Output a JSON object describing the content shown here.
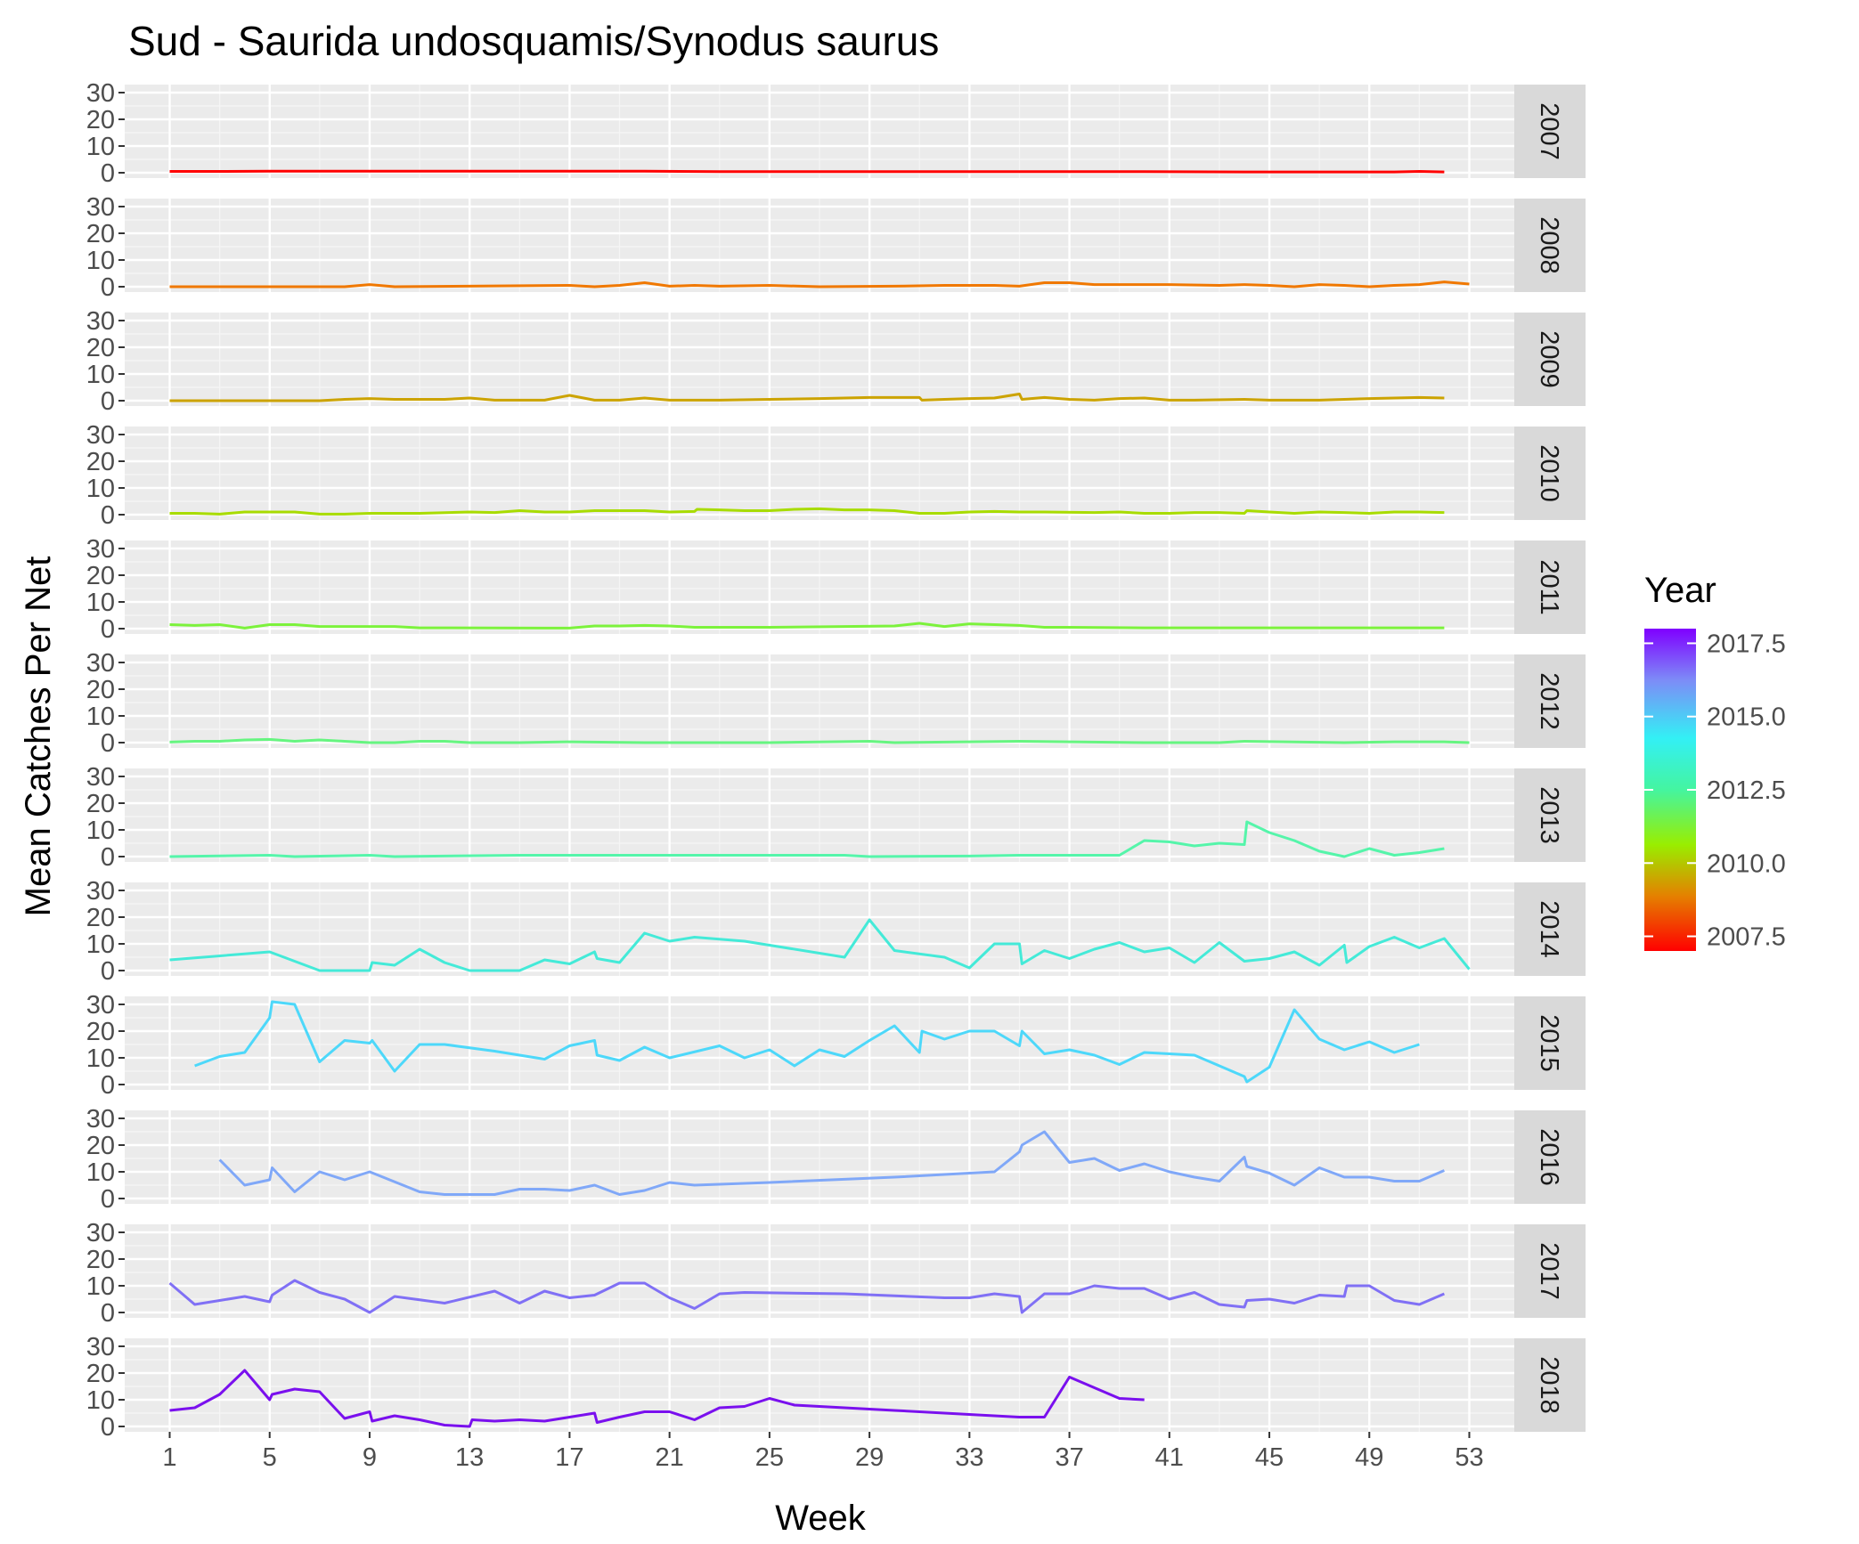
{
  "chart_data": {
    "type": "line",
    "title": "Sud - Saurida undosquamis/Synodus saurus",
    "xlabel": "Week",
    "ylabel": "Mean Catches Per Net",
    "xlim": [
      -0.8,
      54.8
    ],
    "ylim": [
      -2,
      33
    ],
    "xticks": [
      "1",
      "5",
      "9",
      "13",
      "17",
      "21",
      "25",
      "29",
      "33",
      "37",
      "41",
      "45",
      "49",
      "53"
    ],
    "yticks": [
      "0",
      "10",
      "20",
      "30"
    ],
    "facet_by": "Year",
    "facet_labels": [
      "2007",
      "2008",
      "2009",
      "2010",
      "2011",
      "2012",
      "2013",
      "2014",
      "2015",
      "2016",
      "2017",
      "2018"
    ],
    "legend": {
      "title": "Year",
      "position": "right",
      "type": "colorbar",
      "labels": [
        "2017.5",
        "2015.0",
        "2012.5",
        "2010.0",
        "2007.5"
      ]
    },
    "series": [
      {
        "facet": "2007",
        "color": "#FF0000",
        "x": [
          1,
          3,
          5,
          10,
          15,
          20,
          23,
          30,
          40,
          44,
          47,
          50,
          51,
          52
        ],
        "y": [
          0.5,
          0.5,
          0.6,
          0.6,
          0.6,
          0.6,
          0.4,
          0.4,
          0.4,
          0.3,
          0.3,
          0.3,
          0.5,
          0.3
        ]
      },
      {
        "facet": "2008",
        "color": "#F07800",
        "x": [
          1,
          8,
          9,
          10,
          17,
          18,
          19,
          20,
          21,
          22,
          23,
          25,
          27,
          30,
          32,
          34,
          35,
          36,
          37,
          38,
          41,
          43,
          44,
          45,
          46,
          47,
          48,
          49,
          50,
          51,
          52,
          53
        ],
        "y": [
          0,
          0,
          0.8,
          0,
          0.5,
          0,
          0.5,
          1.5,
          0.2,
          0.5,
          0.2,
          0.5,
          0,
          0.2,
          0.5,
          0.5,
          0.2,
          1.5,
          1.5,
          0.8,
          0.8,
          0.5,
          0.8,
          0.5,
          0,
          0.8,
          0.5,
          0,
          0.5,
          0.8,
          1.8,
          1.0
        ]
      },
      {
        "facet": "2009",
        "color": "#CCA300",
        "x": [
          1,
          7,
          8,
          9,
          10,
          11,
          12,
          13,
          14,
          16,
          17,
          18,
          19,
          20,
          21,
          22,
          23,
          25,
          27,
          28,
          29,
          31,
          31.1,
          32,
          33,
          34,
          35,
          35.1,
          36,
          37,
          38,
          39,
          40,
          41,
          42,
          44,
          45,
          47,
          48,
          49,
          50,
          51,
          52
        ],
        "y": [
          0,
          0,
          0.5,
          0.8,
          0.5,
          0.5,
          0.5,
          1.0,
          0.2,
          0.2,
          2.0,
          0.2,
          0.2,
          1.0,
          0.2,
          0.2,
          0.2,
          0.5,
          0.8,
          1.0,
          1.2,
          1.2,
          0.2,
          0.5,
          0.8,
          1.0,
          2.5,
          0.5,
          1.2,
          0.5,
          0.2,
          0.8,
          1.0,
          0.2,
          0.2,
          0.5,
          0.2,
          0.2,
          0.5,
          0.8,
          1.0,
          1.2,
          1.0
        ]
      },
      {
        "facet": "2010",
        "color": "#A8DC00",
        "x": [
          1,
          2,
          3,
          4,
          6,
          7,
          8,
          9,
          10,
          11,
          13,
          14,
          15,
          16,
          17,
          18,
          19,
          20,
          21,
          22,
          22.1,
          23,
          24,
          25,
          26,
          27,
          28,
          29,
          30,
          31,
          32,
          33,
          34,
          35,
          36,
          38,
          39,
          40,
          41,
          42,
          43,
          44,
          44.1,
          45,
          46,
          47,
          48,
          49,
          50,
          51,
          52
        ],
        "y": [
          0.5,
          0.5,
          0.2,
          1.0,
          1.0,
          0.2,
          0.2,
          0.5,
          0.5,
          0.5,
          1.0,
          0.8,
          1.5,
          1.0,
          1.0,
          1.5,
          1.5,
          1.5,
          1.0,
          1.2,
          2.0,
          1.8,
          1.5,
          1.5,
          2.0,
          2.2,
          1.8,
          1.8,
          1.5,
          0.5,
          0.5,
          1.0,
          1.2,
          1.0,
          1.0,
          0.8,
          1.0,
          0.5,
          0.5,
          0.8,
          0.8,
          0.5,
          1.5,
          1.0,
          0.5,
          1.0,
          0.8,
          0.5,
          1.0,
          1.0,
          0.8
        ]
      },
      {
        "facet": "2011",
        "color": "#7CF23C",
        "x": [
          1,
          2,
          3,
          4,
          5,
          6,
          7,
          10,
          11,
          16,
          17,
          18,
          19,
          20,
          21,
          22,
          25,
          28,
          30,
          31,
          32,
          33,
          34,
          35,
          36,
          37,
          40,
          45,
          52
        ],
        "y": [
          1.5,
          1.2,
          1.5,
          0.2,
          1.5,
          1.5,
          0.8,
          0.8,
          0.3,
          0.2,
          0.2,
          1.0,
          1.0,
          1.2,
          1.0,
          0.5,
          0.5,
          0.8,
          1.0,
          2.0,
          0.8,
          1.8,
          1.5,
          1.2,
          0.5,
          0.5,
          0.3,
          0.3,
          0.3
        ]
      },
      {
        "facet": "2012",
        "color": "#66F580",
        "x": [
          1,
          2,
          3,
          4,
          5,
          6,
          7,
          8,
          9,
          10,
          11,
          12,
          13,
          15,
          17,
          20,
          25,
          29,
          30,
          35,
          40,
          43,
          44,
          48,
          50,
          52,
          53
        ],
        "y": [
          0.2,
          0.5,
          0.5,
          1.0,
          1.2,
          0.5,
          1.0,
          0.5,
          0,
          0,
          0.5,
          0.5,
          0,
          0,
          0.3,
          0,
          0,
          0.5,
          0,
          0.5,
          0,
          0,
          0.5,
          0,
          0.3,
          0.3,
          0
        ]
      },
      {
        "facet": "2013",
        "color": "#55F5AA",
        "x": [
          1,
          5,
          6,
          9,
          10,
          15,
          20,
          25,
          28,
          29,
          33,
          35,
          39,
          40,
          41,
          42,
          43,
          44,
          44.1,
          45,
          46,
          47,
          48,
          49,
          50,
          51,
          52
        ],
        "y": [
          0,
          0.5,
          0,
          0.5,
          0,
          0.5,
          0.5,
          0.5,
          0.5,
          0,
          0.2,
          0.5,
          0.5,
          6,
          5.5,
          4,
          5,
          4.5,
          13,
          9,
          6,
          2,
          0,
          3,
          0.5,
          1.5,
          3
        ]
      },
      {
        "facet": "2014",
        "color": "#44EAD8",
        "x": [
          1,
          5,
          7,
          8,
          9,
          9.1,
          10,
          11,
          12,
          13,
          15,
          16,
          17,
          18,
          18.1,
          19,
          20,
          21,
          22,
          24,
          28,
          29,
          30,
          32,
          33,
          34,
          35,
          35.1,
          36,
          37,
          38,
          39,
          40,
          41,
          42,
          43,
          44,
          45,
          46,
          47,
          48,
          48.1,
          49,
          50,
          51,
          52,
          53
        ],
        "y": [
          4,
          7,
          0,
          0,
          0,
          3,
          2,
          8,
          3,
          0,
          0,
          4,
          2.5,
          7,
          4.5,
          3,
          14,
          11,
          12.5,
          11,
          5,
          19,
          7.5,
          5,
          1,
          10,
          10,
          2.5,
          7.5,
          4.5,
          8,
          10.5,
          7,
          8.5,
          3,
          10.5,
          3.5,
          4.5,
          7,
          2,
          9.5,
          3,
          9,
          12.5,
          8.5,
          12,
          0.5
        ]
      },
      {
        "facet": "2015",
        "color": "#4DD8FA",
        "x": [
          2,
          3,
          4,
          5,
          5.1,
          6,
          7,
          8,
          9,
          9.1,
          10,
          11,
          12,
          14,
          16,
          17,
          18,
          18.1,
          19,
          20,
          21,
          23,
          24,
          25,
          26,
          27,
          28,
          29,
          30,
          31,
          31.1,
          32,
          33,
          34,
          35,
          35.1,
          36,
          37,
          38,
          39,
          40,
          42,
          44,
          44.1,
          45,
          46,
          47,
          48,
          49,
          50,
          51
        ],
        "y": [
          7,
          10.5,
          12,
          25,
          31,
          30,
          8.5,
          16.5,
          15.5,
          16.5,
          5,
          15,
          15,
          12.5,
          9.5,
          14.5,
          16.5,
          11,
          9,
          14,
          10,
          14.5,
          10,
          13,
          7,
          13,
          10.5,
          16.5,
          22,
          12,
          20,
          17,
          20,
          20,
          14.5,
          20,
          11.5,
          13,
          11,
          7.5,
          12,
          11,
          3,
          1,
          6.5,
          28,
          17,
          13,
          16,
          12,
          15
        ]
      },
      {
        "facet": "2016",
        "color": "#80A8F8",
        "x": [
          3,
          4,
          5,
          5.1,
          6,
          7,
          8,
          9,
          11,
          12,
          14,
          15,
          16,
          17,
          18,
          19,
          20,
          21,
          22,
          25,
          30,
          34,
          35,
          35.1,
          36,
          37,
          38,
          39,
          40,
          41,
          42,
          43,
          44,
          44.1,
          45,
          46,
          47,
          48,
          49,
          50,
          51,
          52
        ],
        "y": [
          14.5,
          5,
          7,
          11.5,
          2.5,
          10,
          7,
          10,
          2.5,
          1.5,
          1.5,
          3.5,
          3.5,
          3,
          5,
          1.5,
          3,
          6,
          5,
          6,
          8,
          10,
          17.5,
          20,
          25,
          13.5,
          15,
          10.5,
          13,
          10,
          8,
          6.5,
          15.5,
          12,
          9.5,
          5,
          11.5,
          8,
          8,
          6.5,
          6.5,
          10.5
        ]
      },
      {
        "facet": "2017",
        "color": "#8070F5",
        "x": [
          1,
          2,
          3,
          4,
          5,
          5.1,
          6,
          7,
          8,
          9,
          10,
          12,
          14,
          15,
          16,
          17,
          18,
          19,
          20,
          21,
          22,
          23,
          24,
          28,
          32,
          33,
          34,
          35,
          35.1,
          36,
          37,
          38,
          39,
          40,
          41,
          42,
          43,
          44,
          44.1,
          45,
          46,
          47,
          48,
          48.1,
          49,
          50,
          51,
          52
        ],
        "y": [
          11,
          3,
          4.5,
          6,
          4,
          6.5,
          12,
          7.5,
          5,
          0,
          6,
          3.5,
          8,
          3.5,
          8,
          5.5,
          6.5,
          11,
          11,
          5.5,
          1.5,
          7,
          7.5,
          7,
          5.5,
          5.5,
          7,
          6,
          0,
          7,
          7,
          10,
          9,
          9,
          5,
          7.5,
          3,
          2,
          4.5,
          5,
          3.5,
          6.5,
          6,
          10,
          10,
          4.5,
          3,
          7
        ]
      },
      {
        "facet": "2018",
        "color": "#7A10EE",
        "x": [
          1,
          2,
          3,
          4,
          5,
          5.1,
          6,
          7,
          8,
          9,
          9.1,
          10,
          11,
          12,
          13,
          13.1,
          14,
          15,
          16,
          17,
          18,
          18.1,
          19,
          20,
          21,
          22,
          23,
          24,
          25,
          26,
          30,
          35,
          36,
          37,
          38,
          39,
          40
        ],
        "y": [
          6,
          7,
          12,
          21,
          10,
          12,
          14,
          13,
          3,
          5.5,
          2,
          4,
          2.5,
          0.5,
          0,
          2.5,
          2,
          2.5,
          2,
          3.5,
          5,
          1.5,
          3.5,
          5.5,
          5.5,
          2.5,
          7,
          7.5,
          10.5,
          8,
          6,
          3.5,
          3.5,
          18.5,
          14.5,
          10.5,
          10
        ]
      }
    ]
  }
}
